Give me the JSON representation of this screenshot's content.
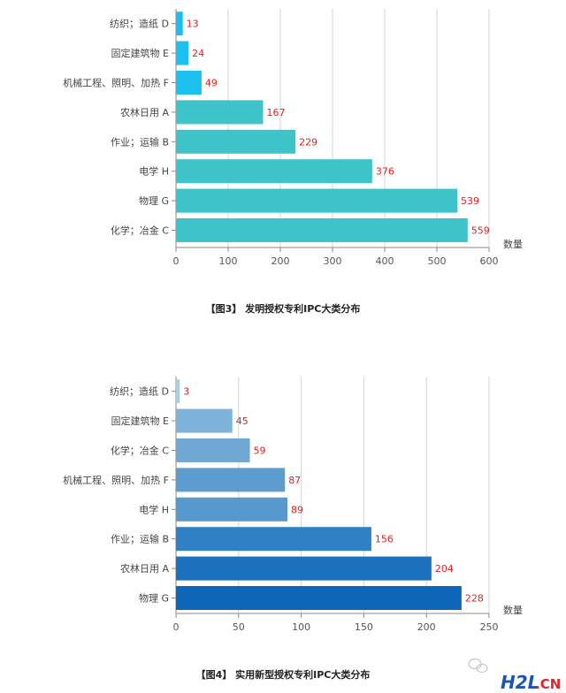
{
  "chart_data": [
    {
      "type": "bar",
      "orientation": "horizontal",
      "title": "【图3】 发明授权专利IPC大类分布",
      "xlabel": "数量",
      "ylabel": "",
      "xlim": [
        0,
        600
      ],
      "xticks": [
        0,
        100,
        200,
        300,
        400,
        500,
        600
      ],
      "grid": true,
      "categories": [
        "纺织；造纸 D",
        "固定建筑物 E",
        "机械工程、照明、加热 F",
        "农林日用 A",
        "作业；运输 B",
        "电学 H",
        "物理 G",
        "化学；冶金 C"
      ],
      "values": [
        13,
        24,
        49,
        167,
        229,
        376,
        539,
        559
      ],
      "colors": [
        "#1cc0ef",
        "#1cc0ef",
        "#1cc0ef",
        "#3ec3c9",
        "#3ec3c9",
        "#3ec3c9",
        "#3ec3c9",
        "#3ec3c9"
      ]
    },
    {
      "type": "bar",
      "orientation": "horizontal",
      "title": "【图4】 实用新型授权专利IPC大类分布",
      "xlabel": "数量",
      "ylabel": "",
      "xlim": [
        0,
        250
      ],
      "xticks": [
        0,
        50,
        100,
        150,
        200,
        250
      ],
      "grid": true,
      "categories": [
        "纺织；造纸 D",
        "固定建筑物 E",
        "化学；冶金 C",
        "机械工程、照明、加热 F",
        "电学 H",
        "作业；运输 B",
        "农林日用 A",
        "物理 G"
      ],
      "values": [
        3,
        45,
        59,
        87,
        89,
        156,
        204,
        228
      ],
      "colors": [
        "#a9cfe6",
        "#7eb3d9",
        "#6fa8d3",
        "#5c9ccf",
        "#5799cd",
        "#2f80c4",
        "#1c72bd",
        "#0d66b8"
      ]
    }
  ],
  "watermark": {
    "logo": "H2L",
    "domain": ".CN",
    "logo_color": "#1a56b0",
    "domain_color": "#d8262c"
  }
}
